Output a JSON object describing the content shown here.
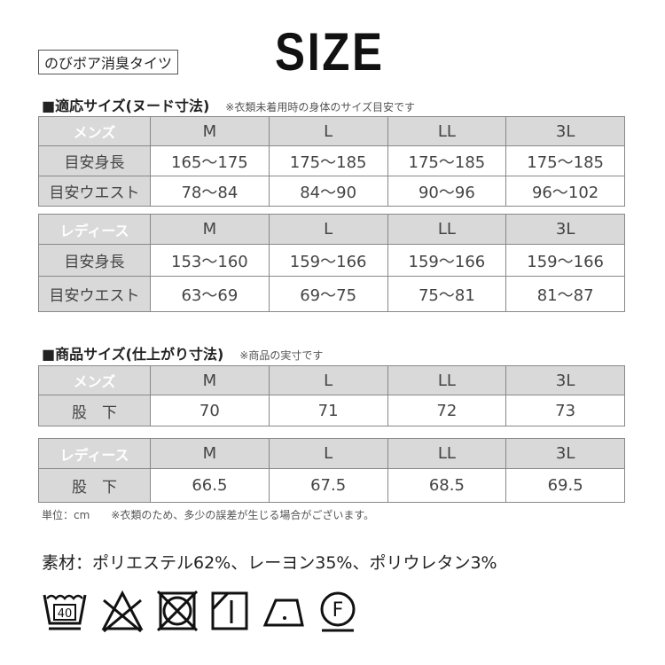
{
  "product_name": "のびボア消臭タイツ",
  "title": "SIZE",
  "section1": {
    "title": "■適応サイズ(ヌード寸法)",
    "note": "※衣類未着用時の身体のサイズ目安です"
  },
  "section2": {
    "title": "■商品サイズ(仕上がり寸法)",
    "note": "※商品の実寸です"
  },
  "sizes": [
    "M",
    "L",
    "LL",
    "3L"
  ],
  "nude_mens": {
    "label": "メンズ",
    "rows": [
      {
        "label": "目安身長",
        "values": [
          "165〜175",
          "175〜185",
          "175〜185",
          "175〜185"
        ]
      },
      {
        "label": "目安ウエスト",
        "values": [
          "78〜84",
          "84〜90",
          "90〜96",
          "96〜102"
        ]
      }
    ]
  },
  "nude_womens": {
    "label": "レディース",
    "rows": [
      {
        "label": "目安身長",
        "values": [
          "153〜160",
          "159〜166",
          "159〜166",
          "159〜166"
        ]
      },
      {
        "label": "目安ウエスト",
        "values": [
          "63〜69",
          "69〜75",
          "75〜81",
          "81〜87"
        ]
      }
    ]
  },
  "prod_mens": {
    "label": "メンズ",
    "rows": [
      {
        "label": "股　下",
        "values": [
          "70",
          "71",
          "72",
          "73"
        ]
      }
    ]
  },
  "prod_womens": {
    "label": "レディース",
    "rows": [
      {
        "label": "股　下",
        "values": [
          "66.5",
          "67.5",
          "68.5",
          "69.5"
        ]
      }
    ]
  },
  "unit_note": "単位：cm　　※衣類のため、多少の誤差が生じる場合がございます。",
  "material": "素材：ポリエステル62%、レーヨン35%、ポリウレタン3%",
  "care_icons": [
    {
      "name": "wash-40-icon",
      "text": "40"
    },
    {
      "name": "no-bleach-icon"
    },
    {
      "name": "no-tumble-dry-icon"
    },
    {
      "name": "line-dry-shade-icon"
    },
    {
      "name": "iron-low-icon"
    },
    {
      "name": "dry-clean-f-icon",
      "text": "F"
    }
  ],
  "colors": {
    "mens": "#1f3a6e",
    "womens": "#8b1a1a",
    "header": "#d9d9d9"
  }
}
